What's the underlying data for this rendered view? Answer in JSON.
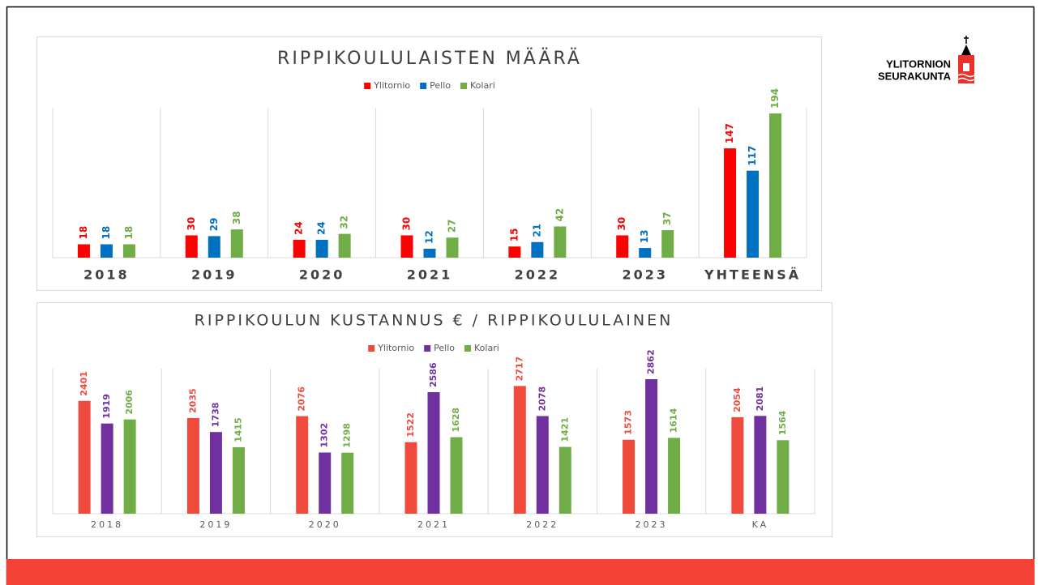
{
  "logo": {
    "line1": "YLITORNION",
    "line2": "SEURAKUNTA"
  },
  "chart_data": [
    {
      "type": "bar",
      "title": "RIPPIKOULULAISTEN MÄÄRÄ",
      "categories": [
        "2018",
        "2019",
        "2020",
        "2021",
        "2022",
        "2023",
        "YHTEENSÄ"
      ],
      "series": [
        {
          "name": "Ylitornio",
          "color": "#ff0000",
          "values": [
            18,
            30,
            24,
            30,
            15,
            30,
            147
          ]
        },
        {
          "name": "Pello",
          "color": "#0070c0",
          "values": [
            18,
            29,
            24,
            12,
            21,
            13,
            117
          ]
        },
        {
          "name": "Kolari",
          "color": "#70ad47",
          "values": [
            18,
            38,
            32,
            27,
            42,
            37,
            194
          ]
        }
      ]
    },
    {
      "type": "bar",
      "title": "RIPPIKOULUN KUSTANNUS € / RIPPIKOULULAINEN",
      "categories": [
        "2018",
        "2019",
        "2020",
        "2021",
        "2022",
        "2023",
        "KA"
      ],
      "series": [
        {
          "name": "Ylitornio",
          "color": "#f04a3c",
          "values": [
            2401,
            2035,
            2076,
            1522,
            2717,
            1573,
            2054
          ]
        },
        {
          "name": "Pello",
          "color": "#7030a0",
          "values": [
            1919,
            1738,
            1302,
            2586,
            2078,
            2862,
            2081
          ]
        },
        {
          "name": "Kolari",
          "color": "#70ad47",
          "values": [
            2006,
            1415,
            1298,
            1628,
            1421,
            1614,
            1564
          ]
        }
      ]
    }
  ]
}
